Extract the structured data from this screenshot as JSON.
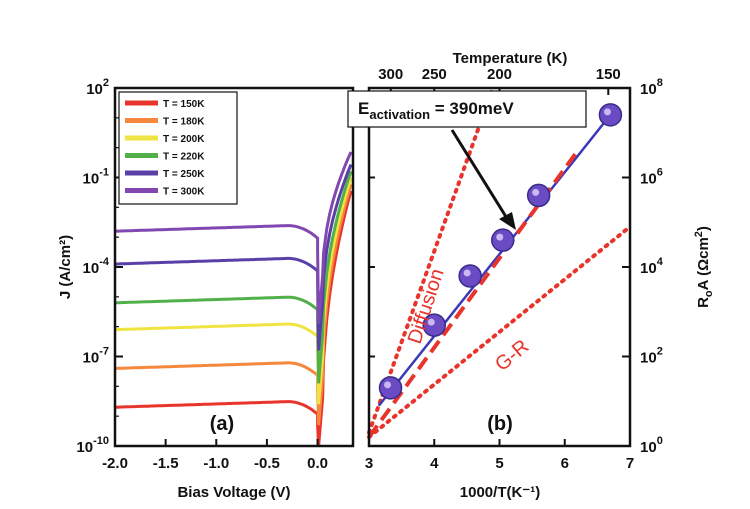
{
  "chart_data": [
    {
      "panel": "(a)",
      "type": "line",
      "xlabel": "Bias Voltage (V)",
      "ylabel": "J (A/cm²)",
      "xlim": [
        -2.0,
        0.35
      ],
      "ylim_log10": [
        -10,
        2
      ],
      "y_scale": "log",
      "x_ticks": [
        "-2.0",
        "-1.5",
        "-1.0",
        "-0.5",
        "0.0"
      ],
      "y_ticks": [
        {
          "base": "10",
          "exp": "2"
        },
        {
          "base": "10",
          "exp": "-1"
        },
        {
          "base": "10",
          "exp": "-4"
        },
        {
          "base": "10",
          "exp": "-7"
        },
        {
          "base": "10",
          "exp": "-10"
        }
      ],
      "legend_position": "top-left",
      "series": [
        {
          "name": "T = 150K",
          "color": "#e8342b",
          "log_plateau": -8.7,
          "log_min": -10.0,
          "log_max": -1.2
        },
        {
          "name": "T = 180K",
          "color": "#f5883c",
          "log_plateau": -7.4,
          "log_min": -9.3,
          "log_max": -1.0
        },
        {
          "name": "T = 200K",
          "color": "#f0e442",
          "log_plateau": -6.1,
          "log_min": -8.6,
          "log_max": -0.8
        },
        {
          "name": "T = 220K",
          "color": "#52b04b",
          "log_plateau": -5.2,
          "log_min": -7.9,
          "log_max": -0.6
        },
        {
          "name": "T = 250K",
          "color": "#5a3fa8",
          "log_plateau": -3.9,
          "log_min": -6.8,
          "log_max": -0.4
        },
        {
          "name": "T = 300K",
          "color": "#8048b0",
          "log_plateau": -2.8,
          "log_min": -5.9,
          "log_max": 0.0
        }
      ],
      "panel_label": "(a)"
    },
    {
      "panel": "(b)",
      "type": "scatter",
      "xlabel": "1000/T(K⁻¹)",
      "ylabel_main": "R",
      "ylabel_sub": "o",
      "ylabel_rest": "A (Ωcm",
      "ylabel_sup": "2",
      "ylabel_end": ")",
      "top_xlabel": "Temperature (K)",
      "xlim": [
        3,
        7
      ],
      "ylim_log10": [
        0,
        8
      ],
      "y_scale": "log",
      "x_ticks": [
        "3",
        "4",
        "5",
        "6",
        "7"
      ],
      "top_ticks": [
        {
          "label": "300",
          "value": 3.333
        },
        {
          "label": "250",
          "value": 4.0
        },
        {
          "label": "200",
          "value": 5.0
        },
        {
          "label": "150",
          "value": 6.667
        }
      ],
      "y_ticks": [
        {
          "base": "10",
          "exp": "0"
        },
        {
          "base": "10",
          "exp": "2"
        },
        {
          "base": "10",
          "exp": "4"
        },
        {
          "base": "10",
          "exp": "6"
        },
        {
          "base": "10",
          "exp": "8"
        }
      ],
      "points": [
        {
          "x": 3.33,
          "y_log10": 1.3
        },
        {
          "x": 4.0,
          "y_log10": 2.7
        },
        {
          "x": 4.55,
          "y_log10": 3.8
        },
        {
          "x": 5.05,
          "y_log10": 4.6
        },
        {
          "x": 5.6,
          "y_log10": 5.6
        },
        {
          "x": 6.7,
          "y_log10": 7.4
        }
      ],
      "fit_line": {
        "x": [
          3.15,
          6.7
        ],
        "y_log10": [
          0.9,
          7.4
        ],
        "color": "#3a3ab8"
      },
      "dashed_fit": {
        "x": [
          3.0,
          6.2
        ],
        "y_log10": [
          0.2,
          6.6
        ],
        "color": "#e8342b"
      },
      "diffusion_line": {
        "x": [
          3.0,
          4.9
        ],
        "y_log10": [
          0.3,
          8.0
        ],
        "color": "#e8342b"
      },
      "gr_line": {
        "x": [
          3.0,
          7.0
        ],
        "y_log10": [
          0.2,
          4.9
        ],
        "color": "#e8342b"
      },
      "annotations": {
        "activation_prefix": "E",
        "activation_sub": "activation",
        "activation_value": " = 390meV",
        "diffusion": "Diffusion",
        "gr": "G-R"
      },
      "panel_label": "(b)"
    }
  ]
}
